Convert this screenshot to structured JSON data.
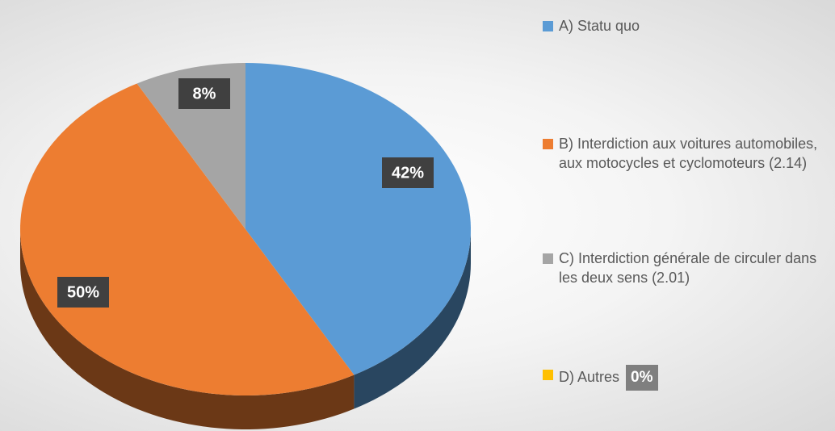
{
  "chart_data": {
    "type": "pie",
    "categories": [
      "A) Statu quo",
      "B) Interdiction aux voitures automobiles, aux motocycles et cyclomoteurs (2.14)",
      "C) Interdiction générale de circuler dans les deux sens (2.01)",
      "D) Autres"
    ],
    "values": [
      42,
      50,
      8,
      0
    ],
    "value_labels": [
      "42%",
      "50%",
      "8%",
      "0%"
    ],
    "colors": [
      "#5b9bd5",
      "#ed7d31",
      "#a5a5a5",
      "#ffc000"
    ],
    "legend": "right"
  }
}
